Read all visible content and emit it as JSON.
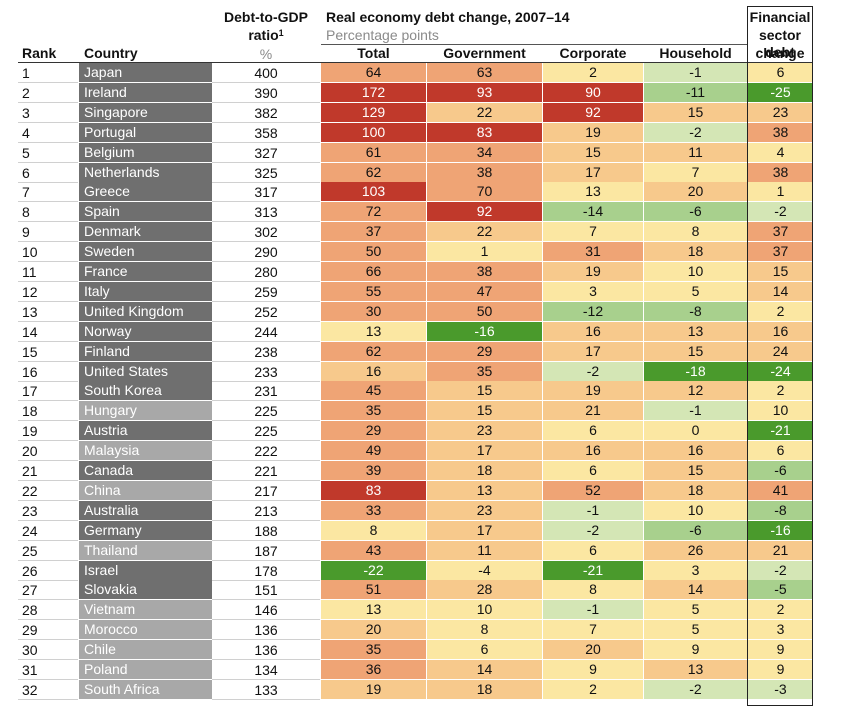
{
  "headers": {
    "rank": "Rank",
    "country": "Country",
    "ratio_line1": "Debt-to-GDP",
    "ratio_line2": "ratio",
    "ratio_sup": "1",
    "ratio_unit": "%",
    "group_title": "Real economy debt change, 2007–14",
    "group_unit": "Percentage points",
    "total": "Total",
    "government": "Government",
    "corporate": "Corporate",
    "household": "Household",
    "financial_line1": "Financial",
    "financial_line2": "sector debt",
    "financial_line3": "change"
  },
  "colors": {
    "dark_red": "#c0392b",
    "orange": "#efa475",
    "light_orange": "#f7c98c",
    "yellow": "#fbe7a2",
    "pale_green": "#d4e6b5",
    "light_green": "#a8d08d",
    "green": "#4a9a2c",
    "country_dark": "#6f6f6f",
    "country_light": "#a8a8a8"
  },
  "chart_data": {
    "type": "table",
    "columns": [
      "Rank",
      "Country",
      "Debt-to-GDP ratio (%)",
      "Total",
      "Government",
      "Corporate",
      "Household",
      "Financial sector debt change"
    ],
    "rows": [
      {
        "rank": "1",
        "country": "Japan",
        "ratio": "400",
        "total": "64",
        "gov": "63",
        "corp": "2",
        "hh": "-1",
        "fin": "6",
        "shade": "dark"
      },
      {
        "rank": "2",
        "country": "Ireland",
        "ratio": "390",
        "total": "172",
        "gov": "93",
        "corp": "90",
        "hh": "-11",
        "fin": "-25",
        "shade": "dark"
      },
      {
        "rank": "3",
        "country": "Singapore",
        "ratio": "382",
        "total": "129",
        "gov": "22",
        "corp": "92",
        "hh": "15",
        "fin": "23",
        "shade": "dark"
      },
      {
        "rank": "4",
        "country": "Portugal",
        "ratio": "358",
        "total": "100",
        "gov": "83",
        "corp": "19",
        "hh": "-2",
        "fin": "38",
        "shade": "dark"
      },
      {
        "rank": "5",
        "country": "Belgium",
        "ratio": "327",
        "total": "61",
        "gov": "34",
        "corp": "15",
        "hh": "11",
        "fin": "4",
        "shade": "dark"
      },
      {
        "rank": "6",
        "country": "Netherlands",
        "ratio": "325",
        "total": "62",
        "gov": "38",
        "corp": "17",
        "hh": "7",
        "fin": "38",
        "shade": "dark"
      },
      {
        "rank": "7",
        "country": "Greece",
        "ratio": "317",
        "total": "103",
        "gov": "70",
        "corp": "13",
        "hh": "20",
        "fin": "1",
        "shade": "dark"
      },
      {
        "rank": "8",
        "country": "Spain",
        "ratio": "313",
        "total": "72",
        "gov": "92",
        "corp": "-14",
        "hh": "-6",
        "fin": "-2",
        "shade": "dark"
      },
      {
        "rank": "9",
        "country": "Denmark",
        "ratio": "302",
        "total": "37",
        "gov": "22",
        "corp": "7",
        "hh": "8",
        "fin": "37",
        "shade": "dark"
      },
      {
        "rank": "10",
        "country": "Sweden",
        "ratio": "290",
        "total": "50",
        "gov": "1",
        "corp": "31",
        "hh": "18",
        "fin": "37",
        "shade": "dark"
      },
      {
        "rank": "11",
        "country": "France",
        "ratio": "280",
        "total": "66",
        "gov": "38",
        "corp": "19",
        "hh": "10",
        "fin": "15",
        "shade": "dark"
      },
      {
        "rank": "12",
        "country": "Italy",
        "ratio": "259",
        "total": "55",
        "gov": "47",
        "corp": "3",
        "hh": "5",
        "fin": "14",
        "shade": "dark"
      },
      {
        "rank": "13",
        "country": "United Kingdom",
        "ratio": "252",
        "total": "30",
        "gov": "50",
        "corp": "-12",
        "hh": "-8",
        "fin": "2",
        "shade": "dark"
      },
      {
        "rank": "14",
        "country": "Norway",
        "ratio": "244",
        "total": "13",
        "gov": "-16",
        "corp": "16",
        "hh": "13",
        "fin": "16",
        "shade": "dark"
      },
      {
        "rank": "15",
        "country": "Finland",
        "ratio": "238",
        "total": "62",
        "gov": "29",
        "corp": "17",
        "hh": "15",
        "fin": "24",
        "shade": "dark"
      },
      {
        "rank": "16",
        "country": "United States",
        "ratio": "233",
        "total": "16",
        "gov": "35",
        "corp": "-2",
        "hh": "-18",
        "fin": "-24",
        "shade": "dark"
      },
      {
        "rank": "17",
        "country": "South Korea",
        "ratio": "231",
        "total": "45",
        "gov": "15",
        "corp": "19",
        "hh": "12",
        "fin": "2",
        "shade": "dark"
      },
      {
        "rank": "18",
        "country": "Hungary",
        "ratio": "225",
        "total": "35",
        "gov": "15",
        "corp": "21",
        "hh": "-1",
        "fin": "10",
        "shade": "light"
      },
      {
        "rank": "19",
        "country": "Austria",
        "ratio": "225",
        "total": "29",
        "gov": "23",
        "corp": "6",
        "hh": "0",
        "fin": "-21",
        "shade": "dark"
      },
      {
        "rank": "20",
        "country": "Malaysia",
        "ratio": "222",
        "total": "49",
        "gov": "17",
        "corp": "16",
        "hh": "16",
        "fin": "6",
        "shade": "light"
      },
      {
        "rank": "21",
        "country": "Canada",
        "ratio": "221",
        "total": "39",
        "gov": "18",
        "corp": "6",
        "hh": "15",
        "fin": "-6",
        "shade": "dark"
      },
      {
        "rank": "22",
        "country": "China",
        "ratio": "217",
        "total": "83",
        "gov": "13",
        "corp": "52",
        "hh": "18",
        "fin": "41",
        "shade": "light"
      },
      {
        "rank": "23",
        "country": "Australia",
        "ratio": "213",
        "total": "33",
        "gov": "23",
        "corp": "-1",
        "hh": "10",
        "fin": "-8",
        "shade": "dark"
      },
      {
        "rank": "24",
        "country": "Germany",
        "ratio": "188",
        "total": "8",
        "gov": "17",
        "corp": "-2",
        "hh": "-6",
        "fin": "-16",
        "shade": "dark"
      },
      {
        "rank": "25",
        "country": "Thailand",
        "ratio": "187",
        "total": "43",
        "gov": "11",
        "corp": "6",
        "hh": "26",
        "fin": "21",
        "shade": "light"
      },
      {
        "rank": "26",
        "country": "Israel",
        "ratio": "178",
        "total": "-22",
        "gov": "-4",
        "corp": "-21",
        "hh": "3",
        "fin": "-2",
        "shade": "dark"
      },
      {
        "rank": "27",
        "country": "Slovakia",
        "ratio": "151",
        "total": "51",
        "gov": "28",
        "corp": "8",
        "hh": "14",
        "fin": "-5",
        "shade": "dark"
      },
      {
        "rank": "28",
        "country": "Vietnam",
        "ratio": "146",
        "total": "13",
        "gov": "10",
        "corp": "-1",
        "hh": "5",
        "fin": "2",
        "shade": "light"
      },
      {
        "rank": "29",
        "country": "Morocco",
        "ratio": "136",
        "total": "20",
        "gov": "8",
        "corp": "7",
        "hh": "5",
        "fin": "3",
        "shade": "light"
      },
      {
        "rank": "30",
        "country": "Chile",
        "ratio": "136",
        "total": "35",
        "gov": "6",
        "corp": "20",
        "hh": "9",
        "fin": "9",
        "shade": "light"
      },
      {
        "rank": "31",
        "country": "Poland",
        "ratio": "134",
        "total": "36",
        "gov": "14",
        "corp": "9",
        "hh": "13",
        "fin": "9",
        "shade": "light"
      },
      {
        "rank": "32",
        "country": "South Africa",
        "ratio": "133",
        "total": "19",
        "gov": "18",
        "corp": "2",
        "hh": "-2",
        "fin": "-3",
        "shade": "light"
      }
    ]
  }
}
